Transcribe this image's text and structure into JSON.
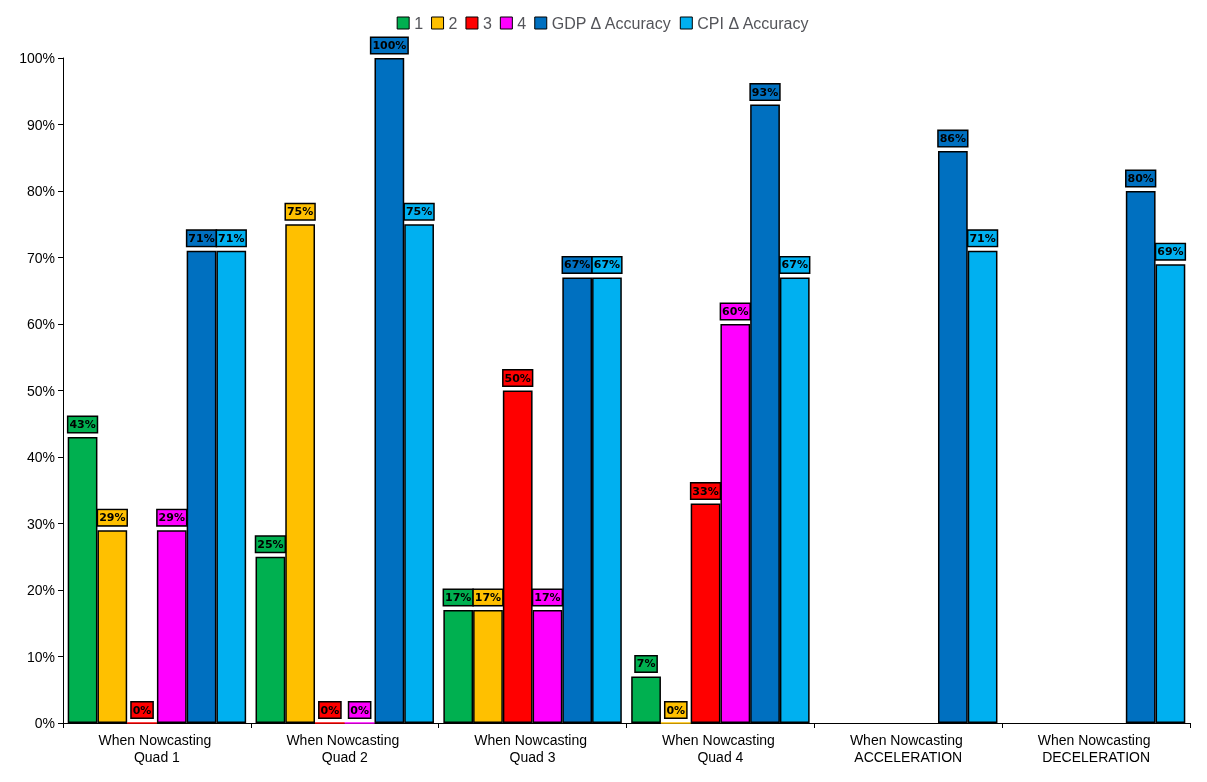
{
  "chart_data": {
    "type": "bar",
    "categories": [
      "When Nowcasting Quad 1",
      "When Nowcasting Quad 2",
      "When Nowcasting Quad 3",
      "When Nowcasting Quad 4",
      "When Nowcasting ACCELERATION",
      "When Nowcasting DECELERATION"
    ],
    "series": [
      {
        "name": "1",
        "color": "#00b050",
        "values": [
          43,
          25,
          17,
          7,
          null,
          null
        ],
        "value_labels": [
          "43%",
          "25%",
          "17%",
          "7%",
          null,
          null
        ]
      },
      {
        "name": "2",
        "color": "#ffc000",
        "values": [
          29,
          75,
          17,
          0,
          null,
          null
        ],
        "value_labels": [
          "29%",
          "75%",
          "17%",
          "0%",
          null,
          null
        ]
      },
      {
        "name": "3",
        "color": "#ff0000",
        "values": [
          0,
          0,
          50,
          33,
          null,
          null
        ],
        "value_labels": [
          "0%",
          "0%",
          "50%",
          "33%",
          null,
          null
        ]
      },
      {
        "name": "4",
        "color": "#ff00ff",
        "values": [
          29,
          0,
          17,
          60,
          null,
          null
        ],
        "value_labels": [
          "29%",
          "0%",
          "17%",
          "60%",
          null,
          null
        ]
      },
      {
        "name": "GDP Δ Accuracy",
        "color": "#0070c0",
        "values": [
          71,
          100,
          67,
          93,
          86,
          80
        ],
        "value_labels": [
          "71%",
          "100%",
          "67%",
          "93%",
          "86%",
          "80%"
        ]
      },
      {
        "name": "CPI Δ Accuracy",
        "color": "#00b0f0",
        "values": [
          71,
          75,
          67,
          67,
          71,
          69
        ],
        "value_labels": [
          "71%",
          "75%",
          "67%",
          "67%",
          "71%",
          "69%"
        ]
      }
    ],
    "ylim": [
      0,
      100
    ],
    "yticks": [
      {
        "value": 0,
        "label": "0%"
      },
      {
        "value": 10,
        "label": "10%"
      },
      {
        "value": 20,
        "label": "20%"
      },
      {
        "value": 30,
        "label": "30%"
      },
      {
        "value": 40,
        "label": "40%"
      },
      {
        "value": 50,
        "label": "50%"
      },
      {
        "value": 60,
        "label": "60%"
      },
      {
        "value": 70,
        "label": "70%"
      },
      {
        "value": 80,
        "label": "80%"
      },
      {
        "value": 90,
        "label": "90%"
      },
      {
        "value": 100,
        "label": "100%"
      }
    ],
    "grid": false,
    "legend": "top"
  }
}
